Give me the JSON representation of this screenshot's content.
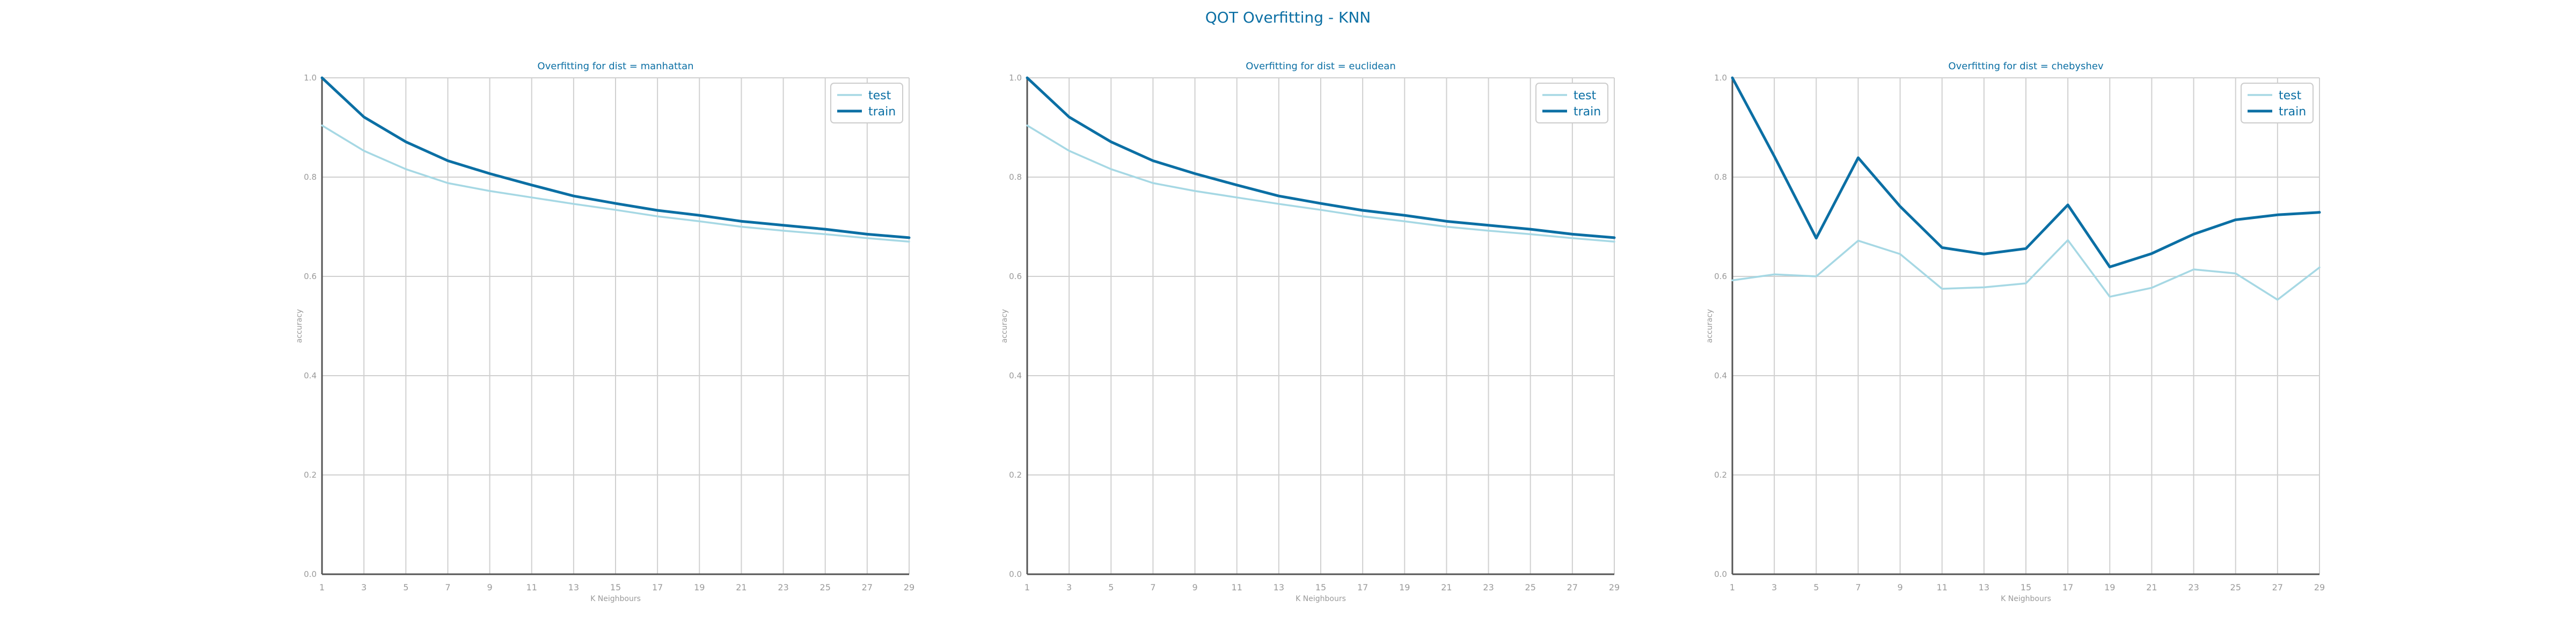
{
  "figure_title": "QOT Overfitting - KNN",
  "colors": {
    "test": "#a6d8e4",
    "train": "#0b6fa4",
    "title": "#0b6fa4",
    "axis_text": "#9a9a9a",
    "grid": "#d0d0d0",
    "axis": "#555555"
  },
  "chart_data": [
    {
      "type": "line",
      "title": "Overfitting for dist = manhattan",
      "xlabel": "K Neighbours",
      "ylabel": "accuracy",
      "x": [
        1,
        3,
        5,
        7,
        9,
        11,
        13,
        15,
        17,
        19,
        21,
        23,
        25,
        27,
        29
      ],
      "xlim": [
        1,
        29
      ],
      "ylim": [
        0.0,
        1.0
      ],
      "yticks": [
        0.0,
        0.2,
        0.4,
        0.6,
        0.8,
        1.0
      ],
      "grid": true,
      "legend_position": "top-right",
      "series": [
        {
          "name": "test",
          "values": [
            0.904,
            0.853,
            0.816,
            0.788,
            0.772,
            0.759,
            0.746,
            0.734,
            0.721,
            0.711,
            0.7,
            0.692,
            0.685,
            0.677,
            0.67
          ]
        },
        {
          "name": "train",
          "values": [
            1.0,
            0.921,
            0.871,
            0.833,
            0.807,
            0.784,
            0.762,
            0.747,
            0.733,
            0.723,
            0.711,
            0.703,
            0.695,
            0.685,
            0.678
          ]
        }
      ]
    },
    {
      "type": "line",
      "title": "Overfitting for dist = euclidean",
      "xlabel": "K Neighbours",
      "ylabel": "accuracy",
      "x": [
        1,
        3,
        5,
        7,
        9,
        11,
        13,
        15,
        17,
        19,
        21,
        23,
        25,
        27,
        29
      ],
      "xlim": [
        1,
        29
      ],
      "ylim": [
        0.0,
        1.0
      ],
      "yticks": [
        0.0,
        0.2,
        0.4,
        0.6,
        0.8,
        1.0
      ],
      "grid": true,
      "legend_position": "top-right",
      "series": [
        {
          "name": "test",
          "values": [
            0.904,
            0.853,
            0.816,
            0.788,
            0.772,
            0.759,
            0.746,
            0.734,
            0.721,
            0.711,
            0.7,
            0.692,
            0.685,
            0.677,
            0.67
          ]
        },
        {
          "name": "train",
          "values": [
            1.0,
            0.921,
            0.871,
            0.833,
            0.807,
            0.784,
            0.762,
            0.747,
            0.733,
            0.723,
            0.711,
            0.703,
            0.695,
            0.685,
            0.678
          ]
        }
      ]
    },
    {
      "type": "line",
      "title": "Overfitting for dist = chebyshev",
      "xlabel": "K Neighbours",
      "ylabel": "accuracy",
      "x": [
        1,
        3,
        5,
        7,
        9,
        11,
        13,
        15,
        17,
        19,
        21,
        23,
        25,
        27,
        29
      ],
      "xlim": [
        1,
        29
      ],
      "ylim": [
        0.0,
        1.0
      ],
      "yticks": [
        0.0,
        0.2,
        0.4,
        0.6,
        0.8,
        1.0
      ],
      "grid": true,
      "legend_position": "top-right",
      "series": [
        {
          "name": "test",
          "values": [
            0.592,
            0.604,
            0.6,
            0.672,
            0.645,
            0.575,
            0.578,
            0.586,
            0.673,
            0.559,
            0.577,
            0.614,
            0.606,
            0.553,
            0.618
          ]
        },
        {
          "name": "train",
          "values": [
            1.0,
            0.842,
            0.677,
            0.839,
            0.741,
            0.658,
            0.645,
            0.656,
            0.744,
            0.619,
            0.646,
            0.685,
            0.714,
            0.724,
            0.729
          ]
        }
      ]
    }
  ]
}
